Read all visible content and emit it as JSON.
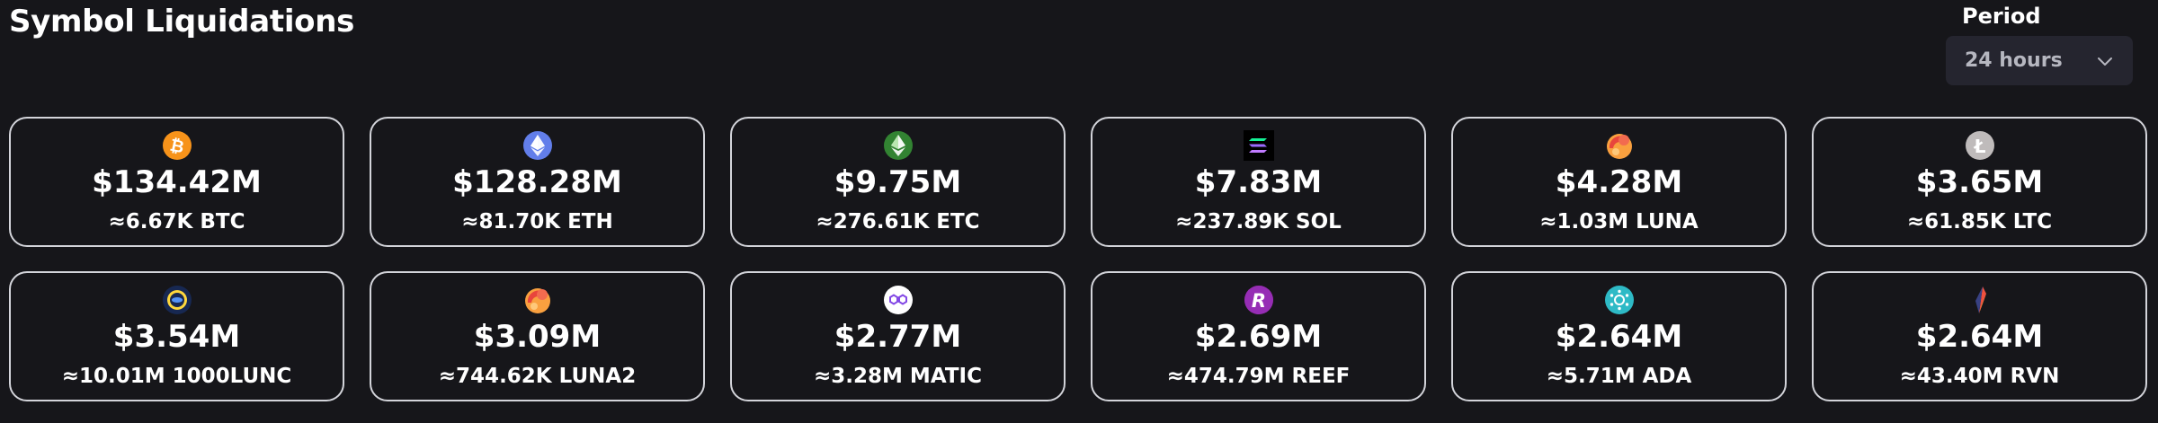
{
  "header": {
    "title": "Symbol Liquidations",
    "period_label": "Period",
    "period_value": "24 hours"
  },
  "cards": [
    {
      "value": "$134.42M",
      "amount": "≈6.67K BTC",
      "icon": "btc-icon",
      "color": "#f7931a"
    },
    {
      "value": "$128.28M",
      "amount": "≈81.70K ETH",
      "icon": "eth-icon",
      "color": "#627eea"
    },
    {
      "value": "$9.75M",
      "amount": "≈276.61K ETC",
      "icon": "etc-icon",
      "color": "#328332"
    },
    {
      "value": "$7.83M",
      "amount": "≈237.89K SOL",
      "icon": "sol-icon",
      "color": "#000000"
    },
    {
      "value": "$4.28M",
      "amount": "≈1.03M LUNA",
      "icon": "luna-icon",
      "color": "#f9a03f"
    },
    {
      "value": "$3.65M",
      "amount": "≈61.85K LTC",
      "icon": "ltc-icon",
      "color": "#bfbbbb"
    },
    {
      "value": "$3.54M",
      "amount": "≈10.01M 1000LUNC",
      "icon": "lunc-icon",
      "color": "#172852"
    },
    {
      "value": "$3.09M",
      "amount": "≈744.62K LUNA2",
      "icon": "luna2-icon",
      "color": "#f9a03f"
    },
    {
      "value": "$2.77M",
      "amount": "≈3.28M MATIC",
      "icon": "matic-icon",
      "color": "#8247e5"
    },
    {
      "value": "$2.69M",
      "amount": "≈474.79M REEF",
      "icon": "reef-icon",
      "color": "#a93185"
    },
    {
      "value": "$2.64M",
      "amount": "≈5.71M ADA",
      "icon": "ada-icon",
      "color": "#2ebac6"
    },
    {
      "value": "$2.64M",
      "amount": "≈43.40M RVN",
      "icon": "rvn-icon",
      "color": "#384182"
    }
  ]
}
